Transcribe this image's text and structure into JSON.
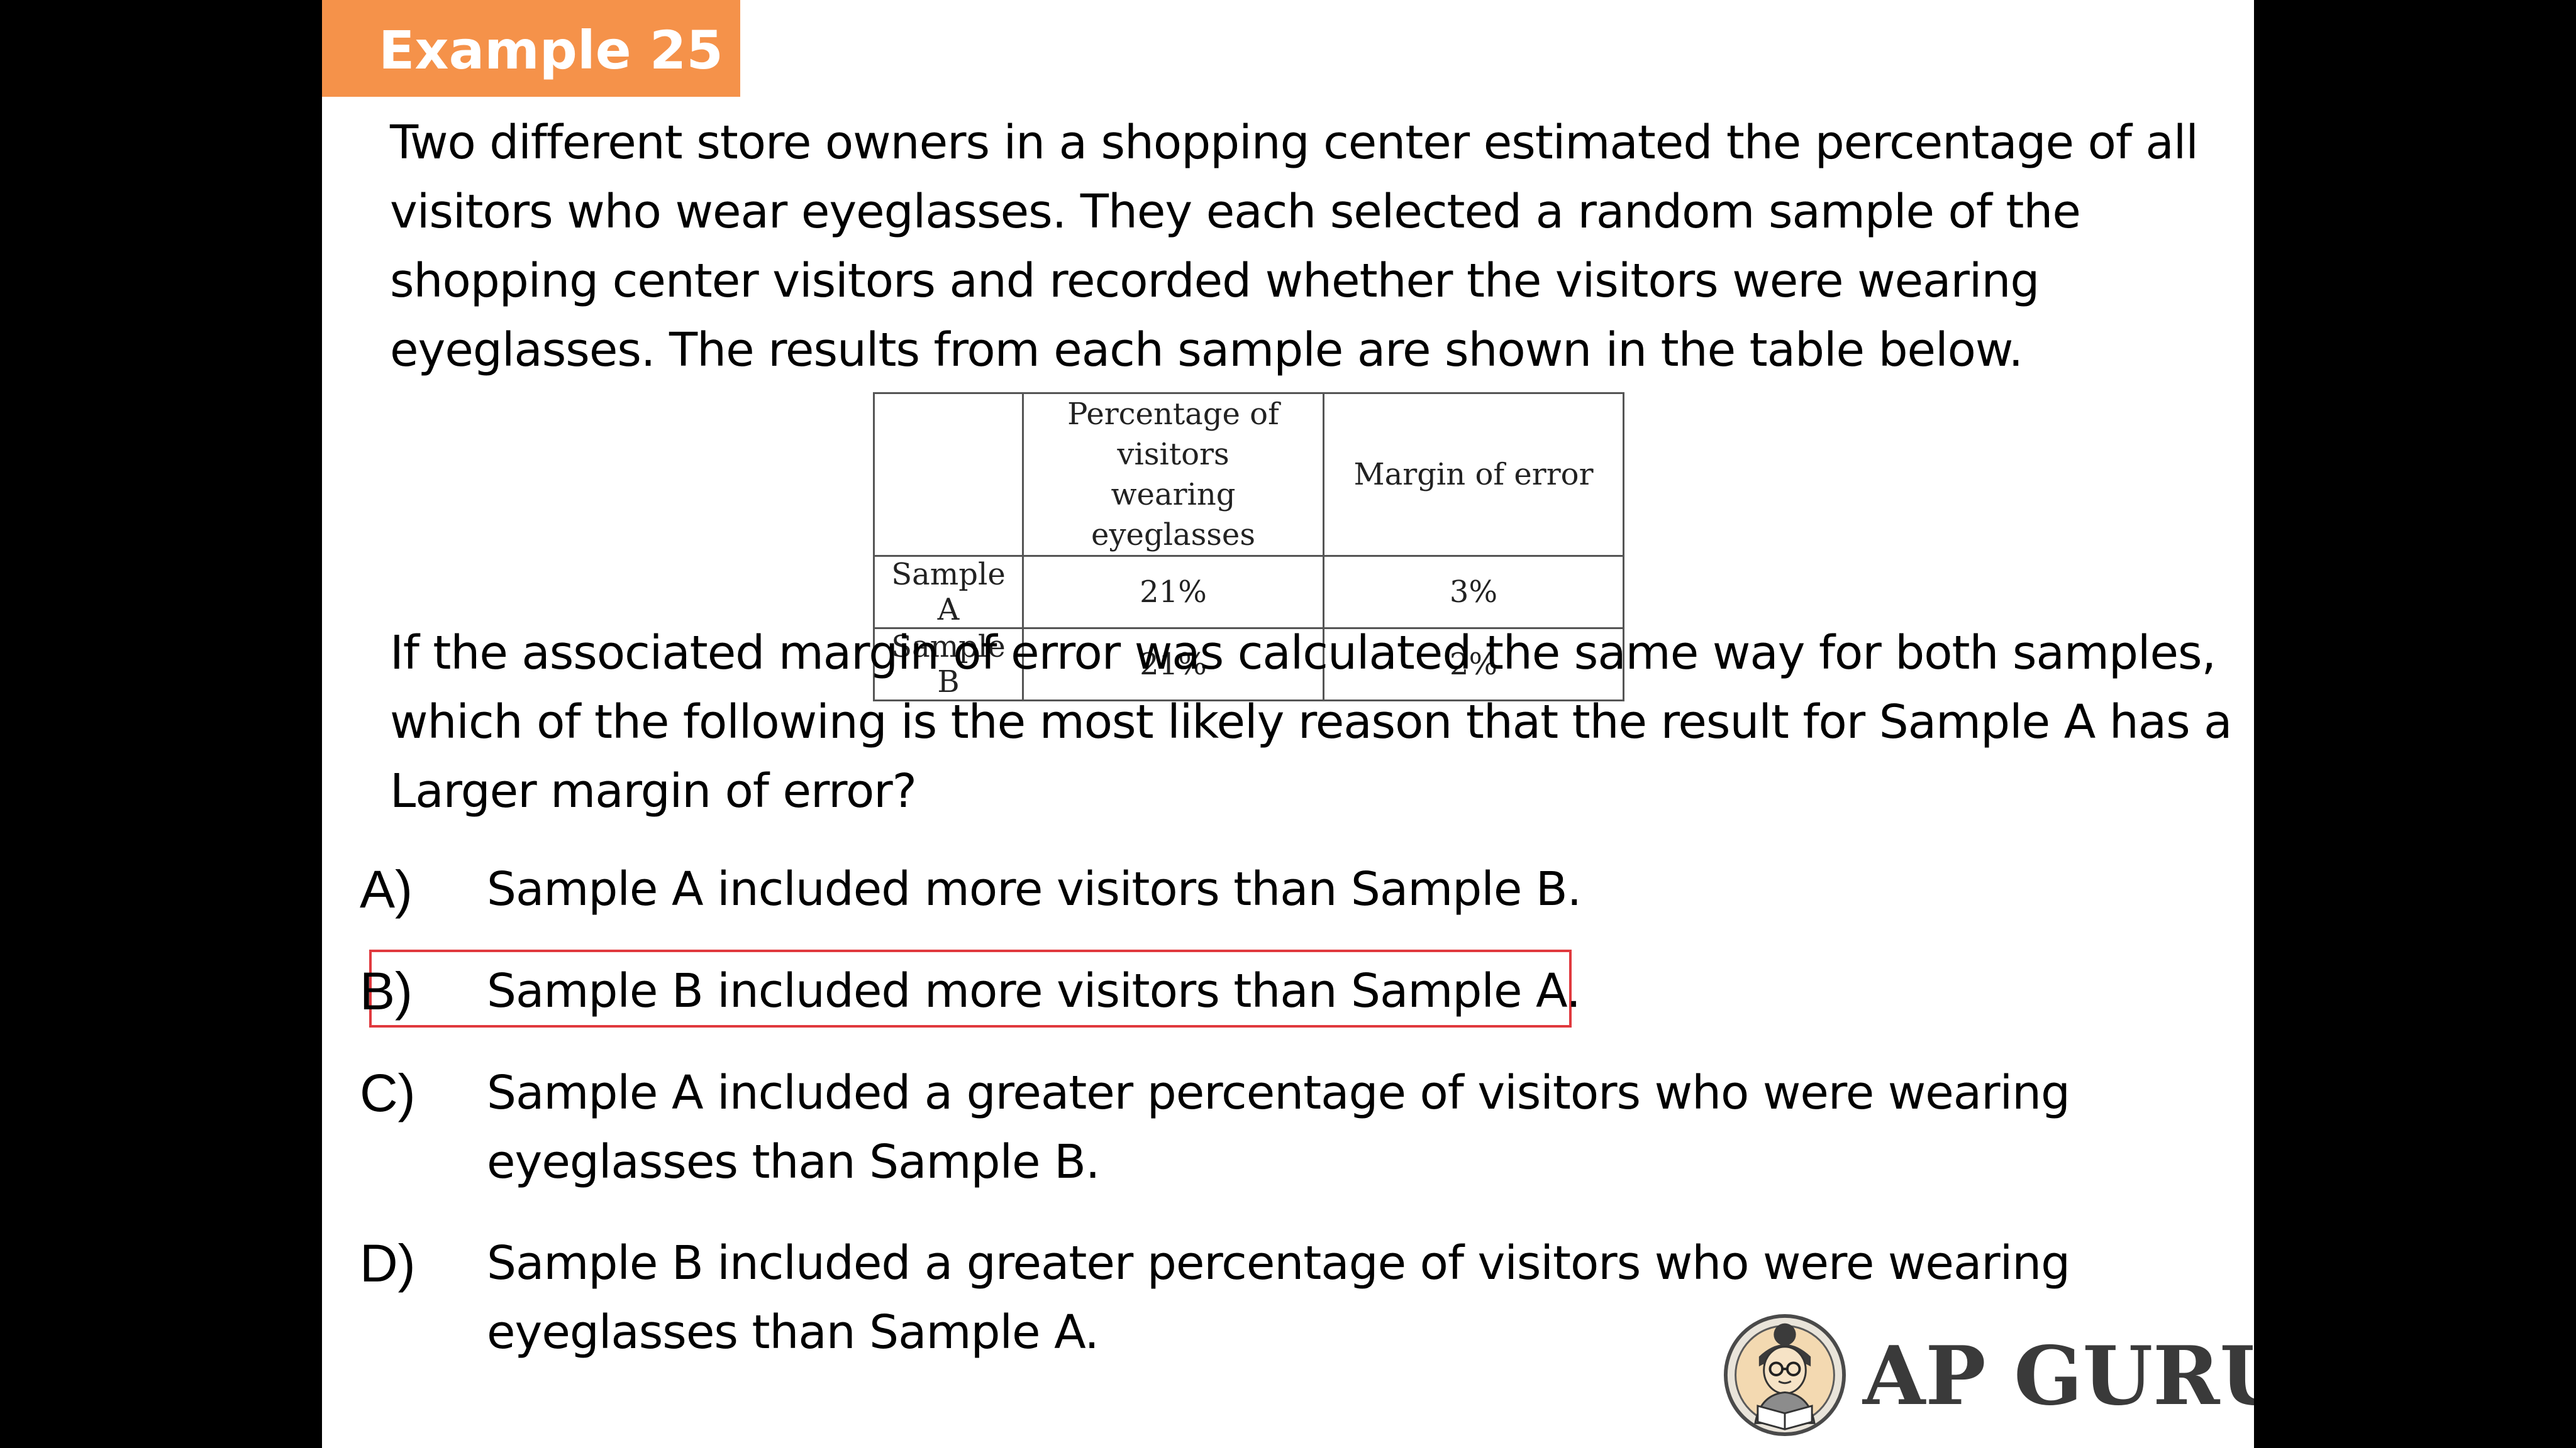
{
  "slide": {
    "title": "Example 25",
    "accent_color": "#f5924a"
  },
  "question": {
    "intro_lines": [
      "Two different store owners in a shopping center estimated the percentage of all",
      "visitors who wear eyeglasses. They each selected a random sample of the",
      "shopping center visitors and recorded whether the visitors were wearing",
      "eyeglasses. The results from each sample are shown in the table below."
    ],
    "stem_lines": [
      "If the associated margin of error was calculated the same way for both samples,",
      "which of the following is the most likely reason that the result for Sample A has a",
      "Larger margin of error?"
    ]
  },
  "table": {
    "headers": [
      "",
      "Percentage of visitors wearing eyeglasses",
      "Margin of error"
    ],
    "header_pct_lines": [
      "Percentage of visitors",
      "wearing eyeglasses"
    ],
    "rows": [
      {
        "label": "Sample A",
        "percentage": "21%",
        "margin": "3%"
      },
      {
        "label": "Sample B",
        "percentage": "21%",
        "margin": "2%"
      }
    ]
  },
  "options": [
    {
      "letter": "A)",
      "lines": [
        "Sample A included more visitors than Sample B."
      ]
    },
    {
      "letter": "B)",
      "lines": [
        "Sample B included more visitors than Sample A."
      ],
      "highlighted": true
    },
    {
      "letter": "C)",
      "lines": [
        "Sample A included a greater percentage of visitors who were wearing",
        "eyeglasses than Sample B."
      ]
    },
    {
      "letter": "D)",
      "lines": [
        "Sample B included a greater percentage of visitors who were wearing",
        "eyeglasses than Sample A."
      ]
    }
  ],
  "highlight_color": "#e0393e",
  "brand": {
    "name": "AP GURU",
    "logo_icon": "reading-teacher-icon"
  }
}
